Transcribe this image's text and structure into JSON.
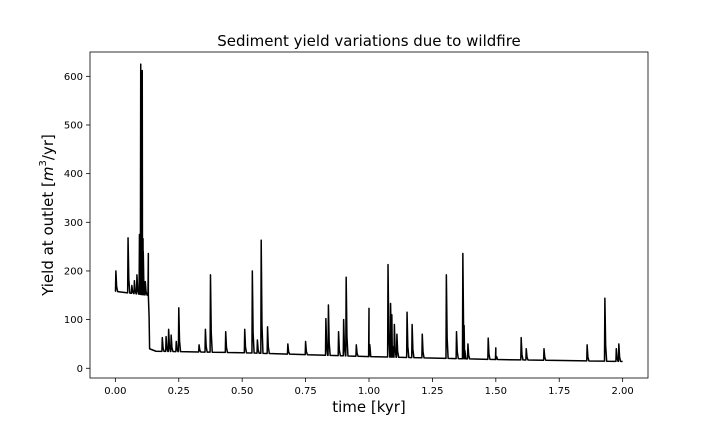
{
  "chart_data": {
    "type": "line",
    "title": "Sediment yield variations due to wildfire",
    "xlabel": "time [kyr]",
    "ylabel_prefix": "Yield at outlet [",
    "ylabel_math": "m",
    "ylabel_exp": "3",
    "ylabel_suffix": "/yr]",
    "xlim": [
      -0.1,
      2.1
    ],
    "ylim": [
      -20,
      650
    ],
    "xticks": [
      0.0,
      0.25,
      0.5,
      0.75,
      1.0,
      1.25,
      1.5,
      1.75,
      2.0
    ],
    "xtick_labels": [
      "0.00",
      "0.25",
      "0.50",
      "0.75",
      "1.00",
      "1.25",
      "1.50",
      "1.75",
      "2.00"
    ],
    "yticks": [
      0,
      100,
      200,
      300,
      400,
      500,
      600
    ],
    "ytick_labels": [
      "0",
      "100",
      "200",
      "300",
      "400",
      "500",
      "600"
    ],
    "grid": false,
    "line_color": "#000000",
    "series": [
      {
        "baseline": [
          [
            0.0,
            158
          ],
          [
            0.13,
            150
          ],
          [
            0.135,
            40
          ],
          [
            0.16,
            35
          ],
          [
            0.5,
            32
          ],
          [
            1.0,
            24
          ],
          [
            1.5,
            18
          ],
          [
            2.0,
            14
          ]
        ],
        "peaks": [
          [
            0.002,
            200
          ],
          [
            0.05,
            268
          ],
          [
            0.065,
            170
          ],
          [
            0.075,
            180
          ],
          [
            0.085,
            192
          ],
          [
            0.095,
            275
          ],
          [
            0.1,
            625
          ],
          [
            0.103,
            250
          ],
          [
            0.106,
            612
          ],
          [
            0.11,
            240
          ],
          [
            0.118,
            178
          ],
          [
            0.13,
            236
          ],
          [
            0.185,
            63
          ],
          [
            0.2,
            65
          ],
          [
            0.21,
            80
          ],
          [
            0.22,
            68
          ],
          [
            0.24,
            55
          ],
          [
            0.25,
            124
          ],
          [
            0.33,
            48
          ],
          [
            0.355,
            80
          ],
          [
            0.375,
            192
          ],
          [
            0.435,
            75
          ],
          [
            0.51,
            80
          ],
          [
            0.54,
            200
          ],
          [
            0.56,
            58
          ],
          [
            0.575,
            263
          ],
          [
            0.6,
            85
          ],
          [
            0.68,
            50
          ],
          [
            0.75,
            55
          ],
          [
            0.83,
            102
          ],
          [
            0.84,
            130
          ],
          [
            0.88,
            75
          ],
          [
            0.9,
            100
          ],
          [
            0.91,
            187
          ],
          [
            0.95,
            48
          ],
          [
            1.0,
            123
          ],
          [
            1.075,
            213
          ],
          [
            1.085,
            133
          ],
          [
            1.09,
            110
          ],
          [
            1.1,
            90
          ],
          [
            1.11,
            70
          ],
          [
            1.15,
            115
          ],
          [
            1.17,
            90
          ],
          [
            1.21,
            70
          ],
          [
            1.305,
            192
          ],
          [
            1.345,
            75
          ],
          [
            1.37,
            236
          ],
          [
            1.375,
            88
          ],
          [
            1.39,
            50
          ],
          [
            1.47,
            62
          ],
          [
            1.5,
            42
          ],
          [
            1.6,
            63
          ],
          [
            1.62,
            40
          ],
          [
            1.69,
            40
          ],
          [
            1.86,
            48
          ],
          [
            1.93,
            144
          ],
          [
            1.975,
            40
          ],
          [
            1.985,
            50
          ]
        ]
      }
    ]
  }
}
